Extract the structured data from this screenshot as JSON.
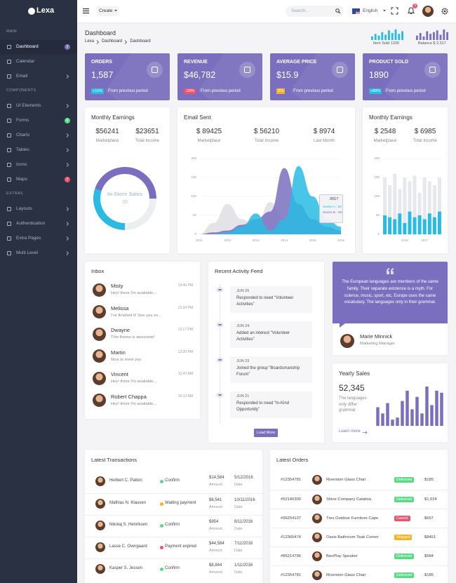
{
  "sidebar": {
    "logo": "Lexa",
    "sections": [
      {
        "title": "MAIN",
        "items": [
          {
            "label": "Dashboard",
            "badge": 3,
            "badge_color": "#7a6fbe",
            "active": true
          },
          {
            "label": "Calendar"
          },
          {
            "label": "Email",
            "submenu": true
          }
        ]
      },
      {
        "title": "COMPONENTS",
        "items": [
          {
            "label": "UI Elements",
            "submenu": true
          },
          {
            "label": "Forms",
            "badge": 6,
            "badge_color": "#58db83"
          },
          {
            "label": "Charts",
            "submenu": true
          },
          {
            "label": "Tables",
            "submenu": true
          },
          {
            "label": "Icons",
            "submenu": true
          },
          {
            "label": "Maps",
            "badge": 2,
            "badge_color": "#ec536c"
          }
        ]
      },
      {
        "title": "EXTRAS",
        "items": [
          {
            "label": "Layouts",
            "submenu": true
          },
          {
            "label": "Authentication",
            "submenu": true
          },
          {
            "label": "Extra Pages",
            "submenu": true
          },
          {
            "label": "Multi Level",
            "submenu": true
          }
        ]
      }
    ]
  },
  "topbar": {
    "create": "Create",
    "search_placeholder": "Search...",
    "language": "English",
    "notifications": 3
  },
  "header": {
    "title": "Dashboard",
    "breadcrumb": [
      "Lexa",
      "Dashboard",
      "Dashboard"
    ],
    "mini_stats": [
      {
        "label": "Item Sold 1230",
        "color": "#29bbe3",
        "ylim": [
          0,
          12
        ],
        "values": [
          4,
          7,
          5,
          9,
          6,
          11,
          8,
          12,
          7,
          10
        ]
      },
      {
        "label": "Balance $ 2,317",
        "color": "#7a6fbe",
        "ylim": [
          0,
          12
        ],
        "values": [
          5,
          8,
          4,
          10,
          7,
          9,
          11,
          6,
          12,
          9
        ]
      }
    ]
  },
  "stats": [
    {
      "title": "ORDERS",
      "value": "1,587",
      "change": "+11%",
      "change_color": "#29bbe3",
      "note": "From previous period"
    },
    {
      "title": "REVENUE",
      "value": "$46,782",
      "change": "-29%",
      "change_color": "#ec536c",
      "note": "From previous period"
    },
    {
      "title": "AVERAGE PRICE",
      "value": "$15.9",
      "change": "0%",
      "change_color": "#f5b225",
      "note": "From previous period"
    },
    {
      "title": "PRODUCT SOLD",
      "value": "1890",
      "change": "+89%",
      "change_color": "#29bbe3",
      "note": "From previous period"
    }
  ],
  "monthly_earnings": {
    "title": "Monthly Earnings",
    "figures": [
      {
        "value": "$56241",
        "label": "Marketplace"
      },
      {
        "value": "$23651",
        "label": "Total Income"
      }
    ],
    "donut": {
      "label": "In-Store Sales",
      "value": 30,
      "segments": [
        {
          "value": 45,
          "color": "#7a6fbe"
        },
        {
          "value": 25,
          "color": "#ebeff2"
        },
        {
          "value": 30,
          "color": "#29bbe3"
        }
      ]
    }
  },
  "email_sent": {
    "title": "Email Sent",
    "figures": [
      {
        "value": "$ 89425",
        "label": "Marketplace"
      },
      {
        "value": "$ 56210",
        "label": "Total Income"
      },
      {
        "value": "$ 8974",
        "label": "Last Month"
      }
    ],
    "chart": {
      "type": "area",
      "x": [
        2011,
        2011.5,
        2012,
        2012.5,
        2013,
        2013.5,
        2014,
        2014.5,
        2015,
        2015.5,
        2016
      ],
      "xlim": [
        2011,
        2016
      ],
      "xticks": [
        2011,
        2012,
        2013,
        2014,
        2015,
        2016
      ],
      "ylim": [
        0,
        200
      ],
      "yticks": [
        0,
        50,
        100,
        150,
        200
      ],
      "series": [
        {
          "color": "#e4e4e8",
          "values": [
            0,
            30,
            80,
            40,
            20,
            85,
            40,
            60,
            30,
            10,
            0
          ]
        },
        {
          "color": "#7a6fbe",
          "values": [
            0,
            5,
            10,
            25,
            40,
            60,
            175,
            80,
            40,
            20,
            10
          ]
        },
        {
          "color": "#29bbe3",
          "values": [
            0,
            0,
            5,
            20,
            55,
            10,
            40,
            180,
            100,
            40,
            20
          ]
        }
      ],
      "tooltip": {
        "title": "2017",
        "lines": [
          "Series A : 90",
          "Series B : 80"
        ]
      }
    }
  },
  "monthly_earnings_2": {
    "title": "Monthly Earnings",
    "figures": [
      {
        "value": "$ 2548",
        "label": "Marketplace"
      },
      {
        "value": "$ 6985",
        "label": "Total Income"
      }
    ],
    "chart": {
      "type": "bar",
      "categories": [
        null,
        null,
        null,
        null,
        "2016",
        null,
        null,
        null,
        "2017",
        null,
        null,
        null
      ],
      "ylim": [
        0,
        200
      ],
      "yticks": [
        0,
        50,
        100,
        150,
        200
      ],
      "series": [
        {
          "color": "#e6e8ec",
          "values": [
            150,
            130,
            160,
            120,
            150,
            140,
            155,
            110,
            150,
            140,
            130,
            150
          ]
        },
        {
          "color": "#29bbe3",
          "values": [
            50,
            45,
            40,
            55,
            30,
            60,
            45,
            50,
            40,
            55,
            45,
            60
          ]
        }
      ]
    }
  },
  "inbox": {
    "title": "Inbox",
    "messages": [
      {
        "name": "Misty",
        "text": "Hey! there I'm available...",
        "time": "13:40 PM"
      },
      {
        "name": "Melissa",
        "text": "I've finished it! See you so...",
        "time": "13:34 PM"
      },
      {
        "name": "Dwayne",
        "text": "This theme is awesome!",
        "time": "13:17 PM"
      },
      {
        "name": "Martin",
        "text": "Nice to meet you",
        "time": "12:20 PM"
      },
      {
        "name": "Vincent",
        "text": "Hey! there I'm available...",
        "time": "11:47 AM"
      },
      {
        "name": "Robert Chappa",
        "text": "Hey! there I'm available...",
        "time": "10:12 AM"
      }
    ]
  },
  "activity": {
    "title": "Recent Activity Feed",
    "items": [
      {
        "date": "JUN 25",
        "text": "Responded to need “Volunteer Activities”"
      },
      {
        "date": "JUN 24",
        "text": "Added an interest “Volunteer Activities”"
      },
      {
        "date": "JUN 23",
        "text": "Joined the group “Boardsmanship Forum”"
      },
      {
        "date": "JUN 21",
        "text": "Responded to need “In-Kind Opportunity”"
      }
    ],
    "button": "Load More"
  },
  "quote": {
    "text": "The European languages are members of the same family. Their separate existence is a myth. For science, music, sport, etc, Europe uses the same vocabulary. The languages only in their grammar.",
    "name": "Marie Minnick",
    "role": "Marketing Manager"
  },
  "yearly_sales": {
    "title": "Yearly Sales",
    "value": "52,345",
    "text": "The languages only differ grammar",
    "link": "Learn more",
    "color": "#7a6fbe",
    "ylim": [
      0,
      100
    ],
    "values": [
      45,
      30,
      55,
      15,
      20,
      60,
      85,
      40,
      70,
      30,
      95,
      50,
      85,
      80
    ]
  },
  "transactions": {
    "title": "Latest Transactions",
    "amount_label": "Amount",
    "date_label": "Date",
    "rows": [
      {
        "name": "Herbert C. Patton",
        "status": "Confirm",
        "status_color": "#58db83",
        "amount": "$14,584",
        "date": "5/12/2016"
      },
      {
        "name": "Mathias N. Klausen",
        "status": "Waiting payment",
        "status_color": "#f5b225",
        "amount": "$8,541",
        "date": "10/11/2016"
      },
      {
        "name": "Nikolaj S. Henriksen",
        "status": "Confirm",
        "status_color": "#58db83",
        "amount": "$954",
        "date": "8/11/2016"
      },
      {
        "name": "Lasse C. Overgaard",
        "status": "Payment expired",
        "status_color": "#ec536c",
        "amount": "$44,584",
        "date": "7/11/2016"
      },
      {
        "name": "Kasper S. Jessen",
        "status": "Confirm",
        "status_color": "#58db83",
        "amount": "$8,844",
        "date": "1/11/2016"
      }
    ]
  },
  "orders": {
    "title": "Latest Orders",
    "rows": [
      {
        "id": "#12354781",
        "product": "Riverston Glass Chair",
        "status": "Delivered",
        "status_color": "#58db83",
        "price": "$185"
      },
      {
        "id": "#52140300",
        "product": "Shine Company Catalina",
        "status": "Delivered",
        "status_color": "#58db83",
        "price": "$1,024"
      },
      {
        "id": "#96254137",
        "product": "Trex Outdoor Furniture Cape",
        "status": "Cancel",
        "status_color": "#ec536c",
        "price": "$657"
      },
      {
        "id": "#12365474",
        "product": "Oasis Bathroom Teak Corner",
        "status": "Shipped",
        "status_color": "#f5b225",
        "price": "$8451"
      },
      {
        "id": "#85214796",
        "product": "BeoPlay Speaker",
        "status": "Delivered",
        "status_color": "#58db83",
        "price": "$584"
      },
      {
        "id": "#12354781",
        "product": "Riverston Glass Chair",
        "status": "Delivered",
        "status_color": "#58db83",
        "price": "$185"
      }
    ]
  }
}
